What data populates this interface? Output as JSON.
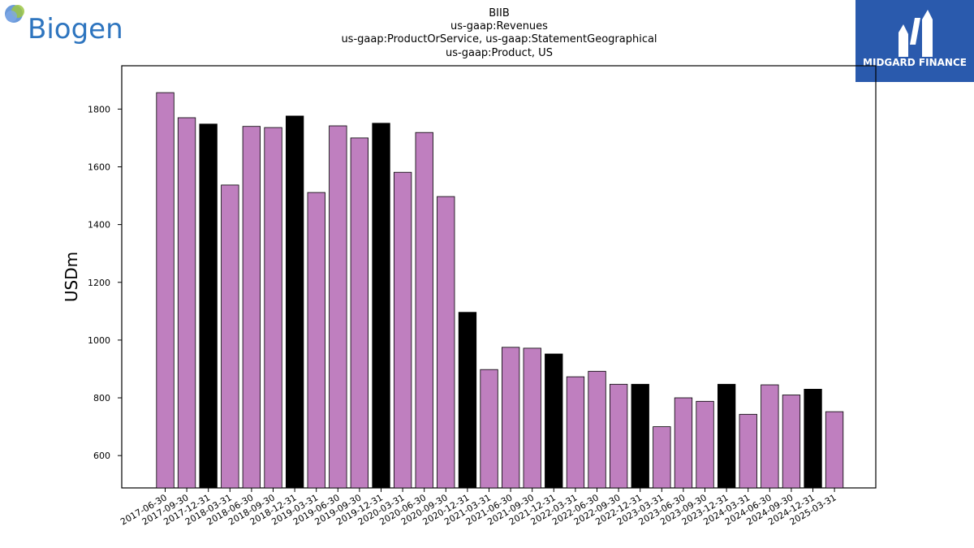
{
  "brand": {
    "left_logo_text": "Biogen",
    "right_logo_text": "MIDGARD FINANCE",
    "right_logo_bg": "#2a5aad"
  },
  "colors": {
    "bar_regular": "#bf7fbf",
    "bar_annual": "#000000",
    "edge": "#000000"
  },
  "chart_data": {
    "type": "bar",
    "title_lines": [
      "BIIB",
      "us-gaap:Revenues",
      "us-gaap:ProductOrService, us-gaap:StatementGeographical",
      "us-gaap:Product, US"
    ],
    "xlabel": "",
    "ylabel": "USDm",
    "ylim": [
      488,
      1950
    ],
    "yticks": [
      600,
      800,
      1000,
      1200,
      1400,
      1600,
      1800
    ],
    "grid": false,
    "categories": [
      "2017-06-30",
      "2017-09-30",
      "2017-12-31",
      "2018-03-31",
      "2018-06-30",
      "2018-09-30",
      "2018-12-31",
      "2019-03-31",
      "2019-06-30",
      "2019-09-30",
      "2019-12-31",
      "2020-03-31",
      "2020-06-30",
      "2020-09-30",
      "2020-12-31",
      "2021-03-31",
      "2021-06-30",
      "2021-09-30",
      "2021-12-31",
      "2022-03-31",
      "2022-06-30",
      "2022-09-30",
      "2022-12-31",
      "2023-03-31",
      "2023-06-30",
      "2023-09-30",
      "2023-12-31",
      "2024-03-31",
      "2024-06-30",
      "2024-09-30",
      "2024-12-31",
      "2025-03-31"
    ],
    "values": [
      1857,
      1770,
      1748,
      1537,
      1740,
      1736,
      1776,
      1511,
      1742,
      1700,
      1751,
      1581,
      1719,
      1497,
      1096,
      898,
      975,
      972,
      952,
      873,
      892,
      847,
      847,
      700,
      800,
      788,
      847,
      743,
      845,
      810,
      830,
      752
    ],
    "highlight": [
      false,
      false,
      true,
      false,
      false,
      false,
      true,
      false,
      false,
      false,
      true,
      false,
      false,
      false,
      true,
      false,
      false,
      false,
      true,
      false,
      false,
      false,
      true,
      false,
      false,
      false,
      true,
      false,
      false,
      false,
      true,
      false
    ]
  }
}
